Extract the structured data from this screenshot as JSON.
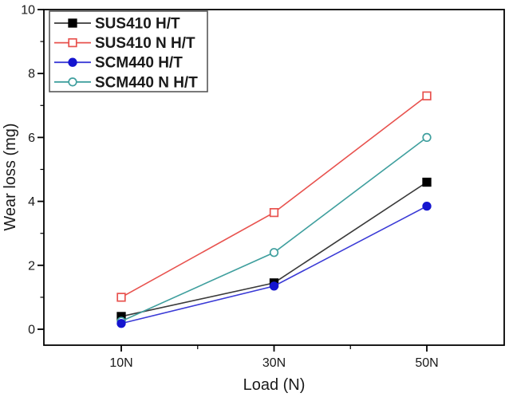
{
  "figure": {
    "background": "#ffffff",
    "text_color": "#1a1a1a",
    "axis_color": "#000000",
    "legend_border_color": "#4d4d4d"
  },
  "chart_data": {
    "type": "line",
    "title": "",
    "xlabel": "Load (N)",
    "ylabel": "Wear loss (mg)",
    "x": [
      10,
      30,
      50
    ],
    "x_tick_labels": [
      "10N",
      "30N",
      "50N"
    ],
    "x_minor_ticks": [
      20,
      40
    ],
    "xlim": [
      0,
      60
    ],
    "y_major_ticks": [
      0,
      2,
      4,
      6,
      8,
      10
    ],
    "y_minor_ticks": [
      1,
      3,
      5,
      7,
      9
    ],
    "ylim": [
      -0.6,
      10
    ],
    "grid": false,
    "legend_position": "top-left",
    "series": [
      {
        "name": "SUS410 H/T",
        "values": [
          0.4,
          1.45,
          4.6
        ],
        "line_color": "#3a3a3a",
        "marker_color": "#000000",
        "marker": "filled-square"
      },
      {
        "name": "SUS410 N H/T",
        "values": [
          1.0,
          3.65,
          7.3
        ],
        "line_color": "#e8524e",
        "marker_color": "#e8524e",
        "marker": "open-square"
      },
      {
        "name": "SCM440 H/T",
        "values": [
          0.18,
          1.35,
          3.85
        ],
        "line_color": "#3a3ad6",
        "marker_color": "#1515cf",
        "marker": "filled-circle"
      },
      {
        "name": "SCM440 N H/T",
        "values": [
          0.25,
          2.4,
          6.0
        ],
        "line_color": "#3f9f9e",
        "marker_color": "#3f9f9e",
        "marker": "open-circle"
      }
    ]
  }
}
